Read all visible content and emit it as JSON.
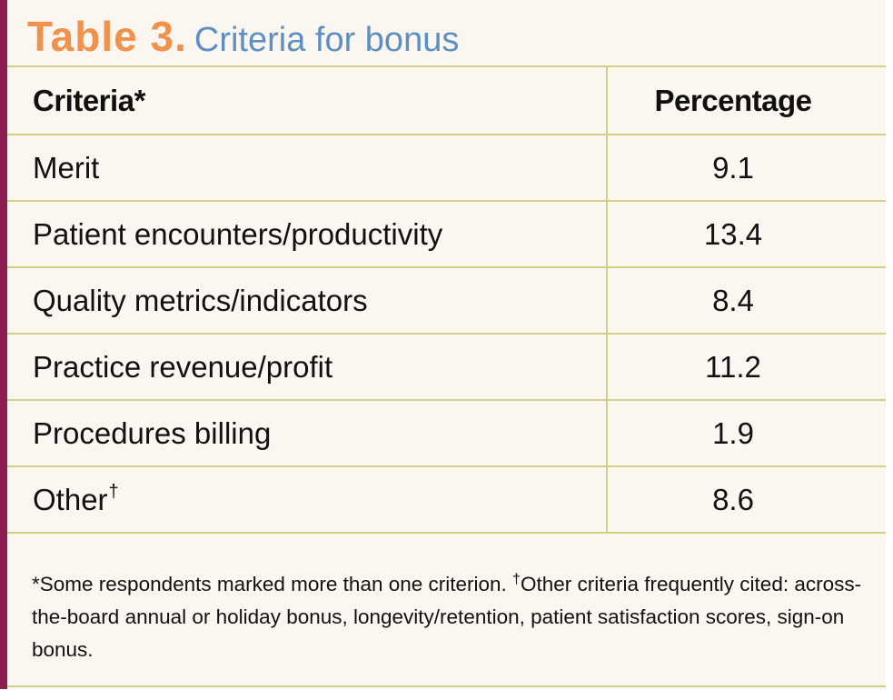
{
  "title": {
    "label": "Table 3.",
    "text": "Criteria for bonus"
  },
  "table": {
    "headers": {
      "criteria": "Criteria",
      "criteria_mark": "*",
      "percentage": "Percentage"
    },
    "rows": [
      {
        "criteria": "Merit",
        "mark": "",
        "percentage": "9.1"
      },
      {
        "criteria": "Patient encounters/productivity",
        "mark": "",
        "percentage": "13.4"
      },
      {
        "criteria": "Quality metrics/indicators",
        "mark": "",
        "percentage": "8.4"
      },
      {
        "criteria": "Practice revenue/profit",
        "mark": "",
        "percentage": "11.2"
      },
      {
        "criteria": "Procedures billing",
        "mark": "",
        "percentage": "1.9"
      },
      {
        "criteria": "Other",
        "mark": "†",
        "percentage": "8.6"
      }
    ]
  },
  "footnote": {
    "mark1": "*",
    "text1": "Some respondents marked more than one criterion. ",
    "mark2": "†",
    "text2": "Other criteria frequently cited: across-the-board annual or holiday bonus, longevity/retention, patient satisfaction scores, sign-on bonus."
  },
  "colors": {
    "accent_bar": "#8c1d4e",
    "title_label": "#f0914c",
    "title_text": "#5c8fc4",
    "rules": "#cfd08a",
    "background": "#fbf7f0"
  }
}
